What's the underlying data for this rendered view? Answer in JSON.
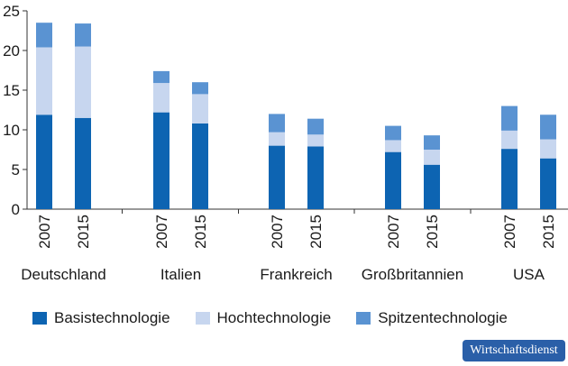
{
  "chart_data": {
    "type": "bar",
    "stacked": true,
    "ylim": [
      0,
      25
    ],
    "yticks": [
      0,
      5,
      10,
      15,
      20,
      25
    ],
    "groups": [
      {
        "country": "Deutschland",
        "years": [
          "2007",
          "2015"
        ]
      },
      {
        "country": "Italien",
        "years": [
          "2007",
          "2015"
        ]
      },
      {
        "country": "Frankreich",
        "years": [
          "2007",
          "2015"
        ]
      },
      {
        "country": "Großbritannien",
        "years": [
          "2007",
          "2015"
        ]
      },
      {
        "country": "USA",
        "years": [
          "2007",
          "2015"
        ]
      }
    ],
    "series": [
      {
        "name": "Basistechnologie",
        "color": "#0d64b2",
        "values": [
          11.9,
          11.5,
          12.2,
          10.8,
          8.0,
          7.9,
          7.2,
          5.6,
          7.6,
          6.4
        ]
      },
      {
        "name": "Hochtechnologie",
        "color": "#c7d6ef",
        "values": [
          8.5,
          9.0,
          3.7,
          3.7,
          1.7,
          1.5,
          1.5,
          1.9,
          2.3,
          2.4
        ]
      },
      {
        "name": "Spitzentechnologie",
        "color": "#5a93d2",
        "values": [
          3.1,
          2.9,
          1.5,
          1.5,
          2.3,
          2.0,
          1.8,
          1.8,
          3.1,
          3.1
        ]
      }
    ],
    "grid": false,
    "legend_position": "bottom"
  },
  "badge": {
    "label": "Wirtschaftsdienst"
  }
}
